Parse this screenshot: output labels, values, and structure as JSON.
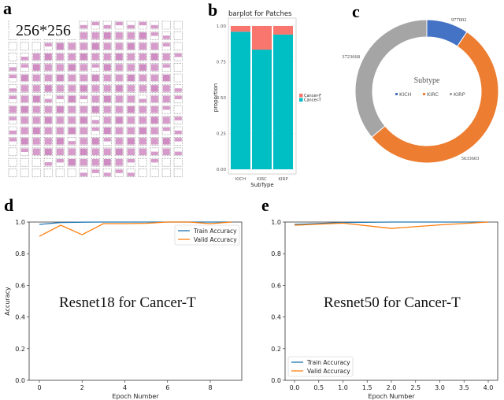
{
  "panels": {
    "a": {
      "label": "a",
      "tile_size_label": "256*256"
    },
    "b": {
      "label": "b"
    },
    "c": {
      "label": "c"
    },
    "d": {
      "label": "d"
    },
    "e": {
      "label": "e"
    }
  },
  "chart_data": [
    {
      "id": "b",
      "type": "bar",
      "stacked": true,
      "title": "barplot for Patches",
      "xlabel": "SubType",
      "ylabel": "proportion",
      "categories": [
        "KICH",
        "KIRC",
        "KIRP"
      ],
      "ylim": [
        0,
        1
      ],
      "yticks": [
        "0.00",
        "0.25",
        "0.50",
        "0.75",
        "1.00"
      ],
      "series": [
        {
          "name": "Cancer-T",
          "values": [
            0.96,
            0.835,
            0.94
          ],
          "color": "#00BFC4"
        },
        {
          "name": "Cancer-F",
          "values": [
            0.04,
            0.165,
            0.06
          ],
          "color": "#F8766D"
        }
      ],
      "legend": "right",
      "grid": true
    },
    {
      "id": "c",
      "type": "pie",
      "donut": true,
      "title": "Subtype",
      "categories": [
        "KICH",
        "KIRC",
        "KIRP"
      ],
      "values": [
        977002,
        5633603,
        3723668
      ],
      "value_labels": [
        "977002",
        "5633603",
        "3723668"
      ],
      "colors": [
        "#4472C4",
        "#ED7D31",
        "#A5A5A5"
      ],
      "legend": "center"
    },
    {
      "id": "d",
      "type": "line",
      "annotation": "Resnet18 for Cancer-T",
      "xlabel": "Epoch Number",
      "ylabel": "Accuracy",
      "x": [
        0,
        1,
        2,
        3,
        4,
        5,
        6,
        7,
        8,
        9
      ],
      "xticks": [
        "0",
        "2",
        "4",
        "6",
        "8"
      ],
      "yticks": [
        "0.0",
        "0.2",
        "0.4",
        "0.6",
        "0.8",
        "1.0"
      ],
      "xlim": [
        -0.45,
        9.45
      ],
      "ylim": [
        0,
        1
      ],
      "series": [
        {
          "name": "Train Accuracy",
          "values": [
            0.985,
            0.997,
            0.999,
            1.0,
            1.0,
            1.0,
            1.0,
            1.0,
            1.0,
            1.0
          ],
          "color": "#1f77b4"
        },
        {
          "name": "Valid Accuracy",
          "values": [
            0.91,
            0.98,
            0.92,
            0.99,
            0.99,
            0.992,
            1.0,
            1.0,
            0.99,
            1.0
          ],
          "color": "#ff7f0e"
        }
      ],
      "legend": "top-right"
    },
    {
      "id": "e",
      "type": "line",
      "annotation": "Resnet50 for Cancer-T",
      "xlabel": "Epoch Number",
      "x": [
        0,
        1,
        2,
        3,
        4
      ],
      "xticks": [
        "0.0",
        "0.5",
        "1.0",
        "1.5",
        "2.0",
        "2.5",
        "3.0",
        "3.5",
        "4.0"
      ],
      "yticks": [
        "0.0",
        "0.2",
        "0.4",
        "0.6",
        "0.8",
        "1.0"
      ],
      "xlim": [
        -0.2,
        4.2
      ],
      "ylim": [
        0,
        1
      ],
      "series": [
        {
          "name": "Train Accuracy",
          "values": [
            0.985,
            0.997,
            1.0,
            1.0,
            1.0
          ],
          "color": "#1f77b4"
        },
        {
          "name": "Valid Accuracy",
          "values": [
            0.98,
            0.993,
            0.96,
            0.982,
            1.0
          ],
          "color": "#ff7f0e"
        }
      ],
      "legend": "bottom-left"
    }
  ]
}
